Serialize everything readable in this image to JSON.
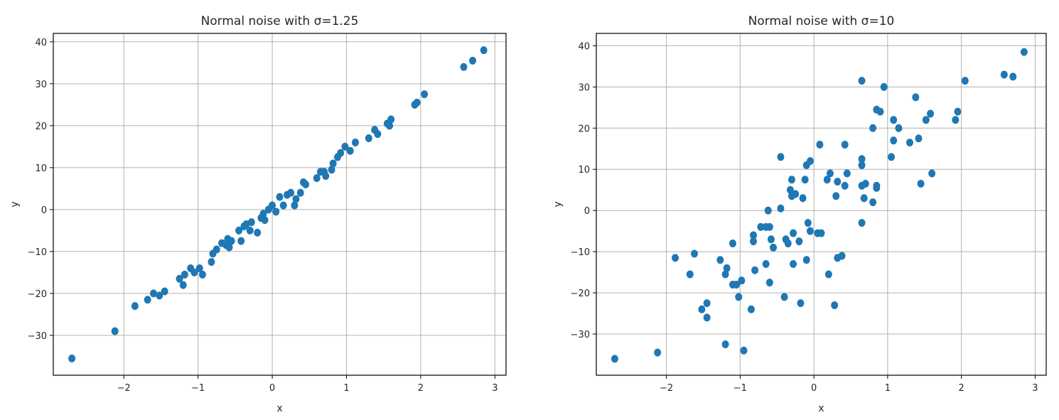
{
  "charts": [
    {
      "type": "scatter",
      "title": "Normal noise with σ=1.25",
      "xlabel": "x",
      "ylabel": "y",
      "xlim": [
        -2.95,
        3.15
      ],
      "ylim": [
        -39.5,
        42
      ],
      "xticks": [
        -2,
        -1,
        0,
        1,
        2,
        3
      ],
      "xtick_labels": [
        "−2",
        "−1",
        "0",
        "1",
        "2",
        "3"
      ],
      "yticks": [
        -30,
        -20,
        -10,
        0,
        10,
        20,
        30,
        40
      ],
      "ytick_labels": [
        "−30",
        "−20",
        "−10",
        "0",
        "10",
        "20",
        "30",
        "40"
      ],
      "grid": true,
      "color": "#1f77b4",
      "points": [
        [
          -2.7,
          -35.5
        ],
        [
          -2.12,
          -29
        ],
        [
          -1.85,
          -23
        ],
        [
          -1.68,
          -21.5
        ],
        [
          -1.6,
          -20
        ],
        [
          -1.52,
          -20.5
        ],
        [
          -1.45,
          -19.5
        ],
        [
          -1.25,
          -16.5
        ],
        [
          -1.18,
          -15.5
        ],
        [
          -1.2,
          -18
        ],
        [
          -1.1,
          -14
        ],
        [
          -1.05,
          -15
        ],
        [
          -0.98,
          -14
        ],
        [
          -0.94,
          -15.5
        ],
        [
          -0.82,
          -12.5
        ],
        [
          -0.8,
          -10.5
        ],
        [
          -0.75,
          -9.5
        ],
        [
          -0.68,
          -8
        ],
        [
          -0.62,
          -8.5
        ],
        [
          -0.6,
          -7
        ],
        [
          -0.55,
          -7.5
        ],
        [
          -0.58,
          -9
        ],
        [
          -0.45,
          -5
        ],
        [
          -0.42,
          -7.5
        ],
        [
          -0.38,
          -4
        ],
        [
          -0.35,
          -3.5
        ],
        [
          -0.3,
          -5
        ],
        [
          -0.28,
          -3
        ],
        [
          -0.2,
          -5.5
        ],
        [
          -0.15,
          -2
        ],
        [
          -0.12,
          -1
        ],
        [
          -0.1,
          -2.5
        ],
        [
          -0.05,
          0
        ],
        [
          0,
          1
        ],
        [
          0.05,
          -0.5
        ],
        [
          0.1,
          3
        ],
        [
          0.15,
          1
        ],
        [
          0.2,
          3.5
        ],
        [
          0.25,
          4
        ],
        [
          0.3,
          1
        ],
        [
          0.32,
          2.5
        ],
        [
          0.38,
          4
        ],
        [
          0.42,
          6.5
        ],
        [
          0.45,
          6
        ],
        [
          0.6,
          7.5
        ],
        [
          0.65,
          9
        ],
        [
          0.7,
          9
        ],
        [
          0.72,
          8
        ],
        [
          0.8,
          9.5
        ],
        [
          0.82,
          11
        ],
        [
          0.88,
          12.5
        ],
        [
          0.92,
          13.5
        ],
        [
          0.98,
          15
        ],
        [
          1.05,
          14
        ],
        [
          1.12,
          16
        ],
        [
          1.3,
          17
        ],
        [
          1.38,
          19
        ],
        [
          1.42,
          18
        ],
        [
          1.55,
          20.5
        ],
        [
          1.6,
          21.5
        ],
        [
          1.58,
          20
        ],
        [
          1.92,
          25
        ],
        [
          1.95,
          25.5
        ],
        [
          2.05,
          27.5
        ],
        [
          2.58,
          34
        ],
        [
          2.7,
          35.5
        ],
        [
          2.85,
          38
        ]
      ]
    },
    {
      "type": "scatter",
      "title": "Normal noise with σ=10",
      "xlabel": "x",
      "ylabel": "y",
      "xlim": [
        -2.95,
        3.15
      ],
      "ylim": [
        -40,
        43
      ],
      "xticks": [
        -2,
        -1,
        0,
        1,
        2,
        3
      ],
      "xtick_labels": [
        "−2",
        "−1",
        "0",
        "1",
        "2",
        "3"
      ],
      "yticks": [
        -30,
        -20,
        -10,
        0,
        10,
        20,
        30,
        40
      ],
      "ytick_labels": [
        "−30",
        "−20",
        "−10",
        "0",
        "10",
        "20",
        "30",
        "40"
      ],
      "grid": true,
      "color": "#1f77b4",
      "points": [
        [
          -2.7,
          -36
        ],
        [
          -2.12,
          -34.5
        ],
        [
          -1.88,
          -11.5
        ],
        [
          -1.68,
          -15.5
        ],
        [
          -1.62,
          -10.5
        ],
        [
          -1.52,
          -24
        ],
        [
          -1.45,
          -26
        ],
        [
          -1.45,
          -22.5
        ],
        [
          -1.27,
          -12
        ],
        [
          -1.2,
          -32.5
        ],
        [
          -1.2,
          -15.5
        ],
        [
          -1.18,
          -14
        ],
        [
          -1.1,
          -18
        ],
        [
          -1.1,
          -8
        ],
        [
          -1.05,
          -18
        ],
        [
          -1.02,
          -21
        ],
        [
          -0.98,
          -17
        ],
        [
          -0.95,
          -34
        ],
        [
          -0.85,
          -24
        ],
        [
          -0.82,
          -6
        ],
        [
          -0.82,
          -7.5
        ],
        [
          -0.8,
          -14.5
        ],
        [
          -0.72,
          -4
        ],
        [
          -0.65,
          -4
        ],
        [
          -0.65,
          -13
        ],
        [
          -0.62,
          0
        ],
        [
          -0.6,
          -17.5
        ],
        [
          -0.6,
          -4
        ],
        [
          -0.58,
          -7
        ],
        [
          -0.55,
          -9
        ],
        [
          -0.45,
          13
        ],
        [
          -0.45,
          0.5
        ],
        [
          -0.4,
          -21
        ],
        [
          -0.38,
          -7
        ],
        [
          -0.35,
          -8
        ],
        [
          -0.32,
          5
        ],
        [
          -0.3,
          7.5
        ],
        [
          -0.3,
          3.5
        ],
        [
          -0.28,
          -5.5
        ],
        [
          -0.28,
          -13
        ],
        [
          -0.25,
          4
        ],
        [
          -0.2,
          -7.5
        ],
        [
          -0.18,
          -22.5
        ],
        [
          -0.15,
          3
        ],
        [
          -0.12,
          7.5
        ],
        [
          -0.1,
          11
        ],
        [
          -0.1,
          -12
        ],
        [
          -0.08,
          -3
        ],
        [
          -0.05,
          -5
        ],
        [
          -0.05,
          12
        ],
        [
          0.05,
          -5.5
        ],
        [
          0.08,
          16
        ],
        [
          0.1,
          -5.5
        ],
        [
          0.18,
          7.5
        ],
        [
          0.2,
          -15.5
        ],
        [
          0.22,
          9
        ],
        [
          0.28,
          -23
        ],
        [
          0.3,
          3.5
        ],
        [
          0.32,
          -11.5
        ],
        [
          0.32,
          7
        ],
        [
          0.38,
          -11
        ],
        [
          0.42,
          16
        ],
        [
          0.45,
          9
        ],
        [
          0.42,
          6
        ],
        [
          0.65,
          -3
        ],
        [
          0.65,
          31.5
        ],
        [
          0.65,
          12.5
        ],
        [
          0.65,
          11
        ],
        [
          0.65,
          6
        ],
        [
          0.68,
          3
        ],
        [
          0.7,
          6.5
        ],
        [
          0.8,
          20
        ],
        [
          0.8,
          2
        ],
        [
          0.85,
          5.5
        ],
        [
          0.85,
          24.5
        ],
        [
          0.9,
          24
        ],
        [
          0.85,
          6
        ],
        [
          0.95,
          30
        ],
        [
          1.05,
          13
        ],
        [
          1.08,
          22
        ],
        [
          1.08,
          17
        ],
        [
          1.15,
          20
        ],
        [
          1.3,
          16.5
        ],
        [
          1.38,
          27.5
        ],
        [
          1.42,
          17.5
        ],
        [
          1.45,
          6.5
        ],
        [
          1.52,
          22
        ],
        [
          1.58,
          23.5
        ],
        [
          1.6,
          9
        ],
        [
          1.92,
          22
        ],
        [
          1.95,
          24
        ],
        [
          2.05,
          31.5
        ],
        [
          2.58,
          33
        ],
        [
          2.7,
          32.5
        ],
        [
          2.85,
          38.5
        ]
      ]
    }
  ]
}
